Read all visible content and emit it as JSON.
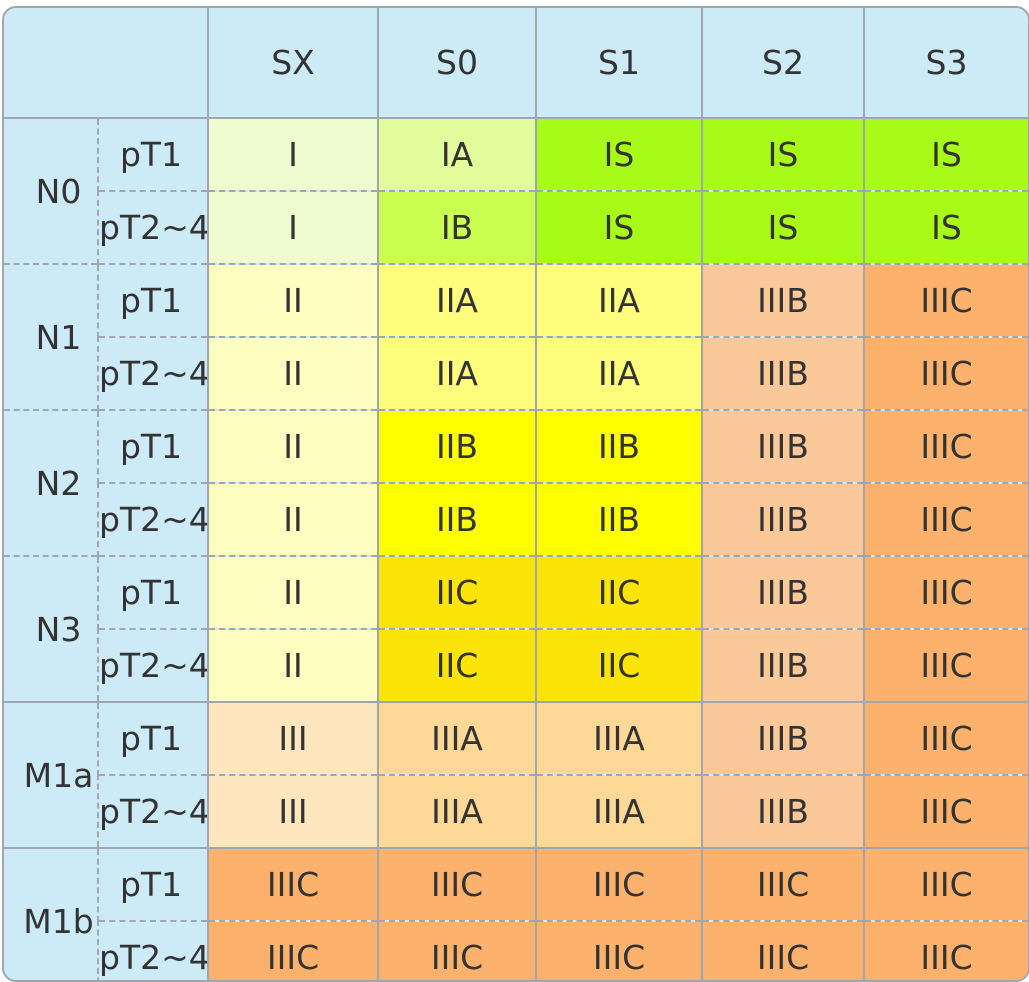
{
  "columns": [
    "SX",
    "S0",
    "S1",
    "S2",
    "S3"
  ],
  "colors": {
    "I": "#eefcd0",
    "IA": "#e2fc9c",
    "IB": "#caff52",
    "IS": "#a8fa18",
    "II": "#fefec0",
    "IIA": "#fefe7c",
    "IIB": "#fefe00",
    "IIC": "#fce408",
    "III": "#fde6be",
    "IIIA": "#fdd897",
    "IIIB": "#fbc899",
    "IIIC": "#fcb26c"
  },
  "groups": [
    {
      "label": "N0",
      "rows": [
        {
          "t": "pT1",
          "cells": [
            "I",
            "IA",
            "IS",
            "IS",
            "IS"
          ]
        },
        {
          "t": "pT2~4",
          "cells": [
            "I",
            "IB",
            "IS",
            "IS",
            "IS"
          ]
        }
      ]
    },
    {
      "label": "N1",
      "rows": [
        {
          "t": "pT1",
          "cells": [
            "II",
            "IIA",
            "IIA",
            "IIIB",
            "IIIC"
          ]
        },
        {
          "t": "pT2~4",
          "cells": [
            "II",
            "IIA",
            "IIA",
            "IIIB",
            "IIIC"
          ]
        }
      ]
    },
    {
      "label": "N2",
      "rows": [
        {
          "t": "pT1",
          "cells": [
            "II",
            "IIB",
            "IIB",
            "IIIB",
            "IIIC"
          ]
        },
        {
          "t": "pT2~4",
          "cells": [
            "II",
            "IIB",
            "IIB",
            "IIIB",
            "IIIC"
          ]
        }
      ]
    },
    {
      "label": "N3",
      "rows": [
        {
          "t": "pT1",
          "cells": [
            "II",
            "IIC",
            "IIC",
            "IIIB",
            "IIIC"
          ]
        },
        {
          "t": "pT2~4",
          "cells": [
            "II",
            "IIC",
            "IIC",
            "IIIB",
            "IIIC"
          ]
        }
      ]
    },
    {
      "label": "M1a",
      "rows": [
        {
          "t": "pT1",
          "cells": [
            "III",
            "IIIA",
            "IIIA",
            "IIIB",
            "IIIC"
          ]
        },
        {
          "t": "pT2~4",
          "cells": [
            "III",
            "IIIA",
            "IIIA",
            "IIIB",
            "IIIC"
          ]
        }
      ]
    },
    {
      "label": "M1b",
      "rows": [
        {
          "t": "pT1",
          "cells": [
            "IIIC",
            "IIIC",
            "IIIC",
            "IIIC",
            "IIIC"
          ]
        },
        {
          "t": "pT2~4",
          "cells": [
            "IIIC",
            "IIIC",
            "IIIC",
            "IIIC",
            "IIIC"
          ]
        }
      ]
    }
  ]
}
